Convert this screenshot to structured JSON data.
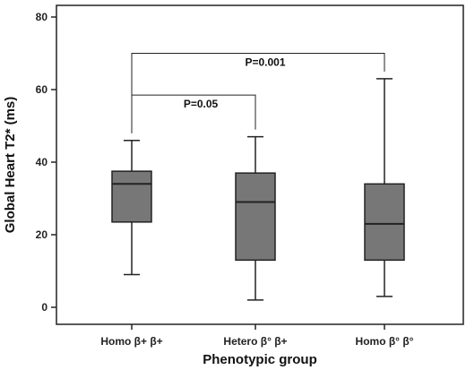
{
  "chart_data": {
    "type": "box",
    "title": "",
    "xlabel": "Phenotypic group",
    "ylabel": "Global Heart T2* (ms)",
    "ylim": [
      -5,
      85
    ],
    "yticks": [
      "0",
      "20",
      "40",
      "60",
      "80"
    ],
    "grid": false,
    "categories": [
      "Homo β+ β+",
      "Hetero β° β+",
      "Homo β° β°"
    ],
    "boxes": [
      {
        "min": 9,
        "q1": 23.5,
        "median": 34,
        "q3": 37.5,
        "max": 46
      },
      {
        "min": 2,
        "q1": 13,
        "median": 29,
        "q3": 37,
        "max": 47
      },
      {
        "min": 3,
        "q1": 13,
        "median": 23,
        "q3": 34,
        "max": 63
      }
    ],
    "annotations": [
      {
        "text": "P=0.001",
        "from": 0,
        "to": 2,
        "y": 70
      },
      {
        "text": "P=0.05",
        "from": 0,
        "to": 1,
        "y": 58.5
      }
    ],
    "colors": {
      "box_fill": "#777777",
      "line": "#222222"
    }
  }
}
